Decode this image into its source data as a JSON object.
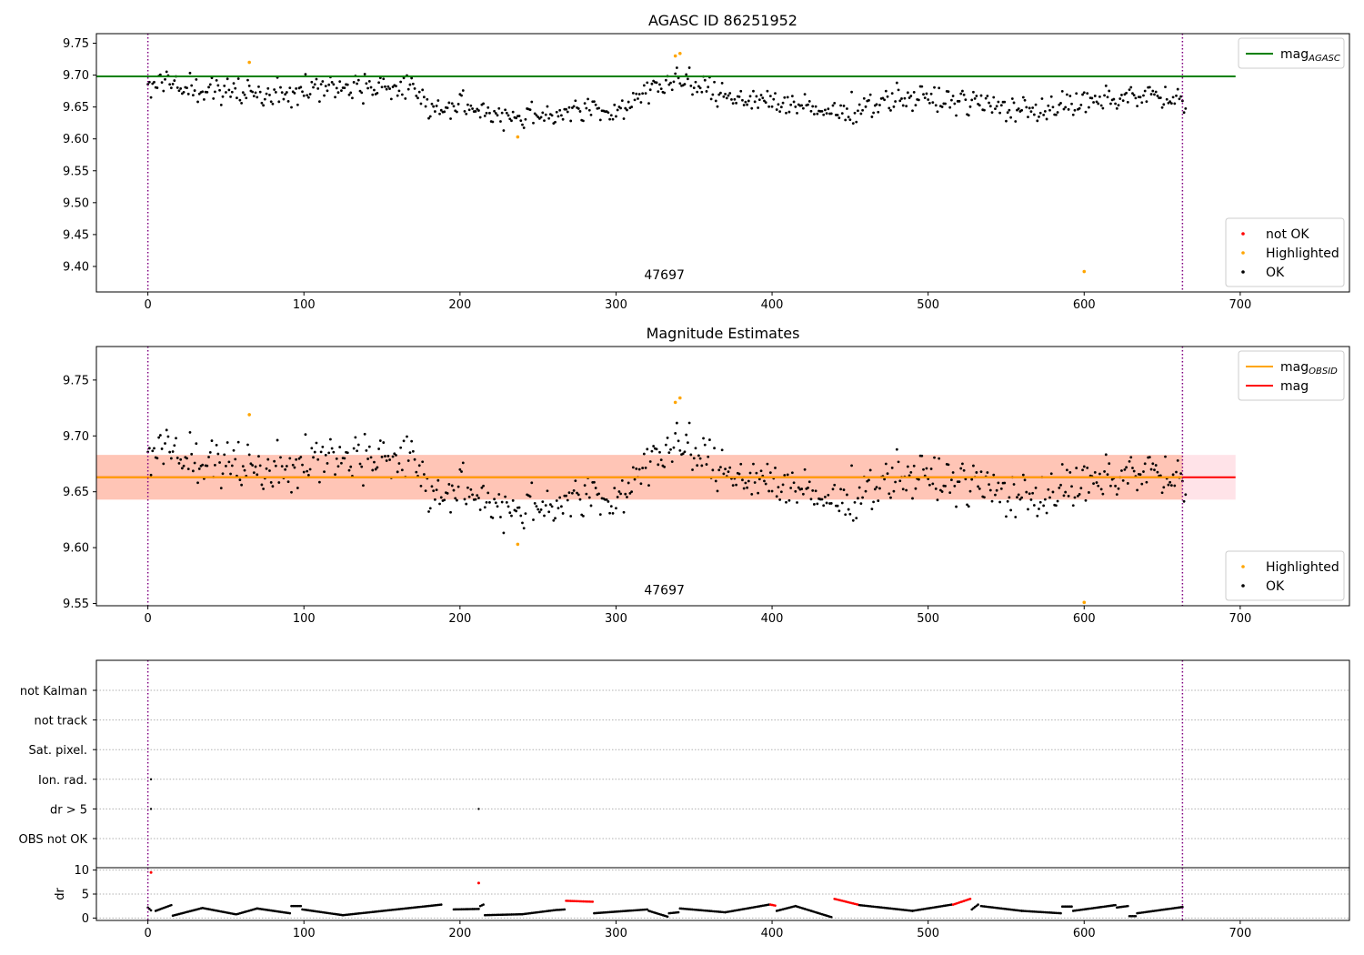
{
  "chart_data": [
    {
      "id": "agasc",
      "type": "scatter",
      "title": "AGASC ID 86251952",
      "xlim": [
        -33,
        770
      ],
      "ylim": [
        9.36,
        9.765
      ],
      "xticks": [
        0,
        100,
        200,
        300,
        400,
        500,
        600,
        700
      ],
      "yticks": [
        9.4,
        9.45,
        9.5,
        9.55,
        9.6,
        9.65,
        9.7,
        9.75
      ],
      "ytick_format": 2,
      "grid": false,
      "reference_line": {
        "name": "mag_AGASC",
        "value": 9.698,
        "x": [
          -33,
          697
        ],
        "color": "#008000"
      },
      "vlines": [
        {
          "x": 0,
          "color": "#800080"
        },
        {
          "x": 663,
          "color": "#800080"
        }
      ],
      "annotation": {
        "text": "47697",
        "x": 331,
        "y": 9.38
      },
      "legend_lines": {
        "position": "upper-right",
        "items": [
          {
            "label_main": "mag",
            "label_sub": "AGASC",
            "color": "#008000"
          }
        ]
      },
      "legend_points": {
        "position": "lower-right",
        "items": [
          {
            "label": "not OK",
            "color": "#ff0000"
          },
          {
            "label": "Highlighted",
            "color": "#ffa500"
          },
          {
            "label": "OK",
            "color": "#000000"
          }
        ]
      },
      "series": [
        {
          "name": "Highlighted",
          "color": "#ffa500",
          "x": [
            65,
            237,
            338,
            341,
            600
          ],
          "y": [
            9.72,
            9.603,
            9.73,
            9.734,
            9.392
          ]
        }
      ],
      "ok_trend": {
        "x": [
          0,
          40,
          80,
          130,
          170,
          180,
          200,
          235,
          280,
          300,
          320,
          345,
          365,
          400,
          420,
          440,
          480,
          520,
          560,
          600,
          640,
          665
        ],
        "y": [
          9.69,
          9.675,
          9.672,
          9.683,
          9.68,
          9.648,
          9.65,
          9.635,
          9.645,
          9.64,
          9.68,
          9.69,
          9.67,
          9.66,
          9.648,
          9.64,
          9.665,
          9.66,
          9.645,
          9.655,
          9.67,
          9.655
        ],
        "jitter": 0.017,
        "color": "#000000"
      }
    },
    {
      "id": "estimates",
      "type": "scatter",
      "title": "Magnitude Estimates",
      "xlim": [
        -33,
        770
      ],
      "ylim": [
        9.548,
        9.78
      ],
      "xticks": [
        0,
        100,
        200,
        300,
        400,
        500,
        600,
        700
      ],
      "yticks": [
        9.55,
        9.6,
        9.65,
        9.7,
        9.75
      ],
      "ytick_format": 2,
      "grid": false,
      "bands": [
        {
          "y": [
            9.643,
            9.683
          ],
          "x": [
            -33,
            697
          ],
          "color": "#ffc0cb",
          "opacity": 0.45
        },
        {
          "y": [
            9.643,
            9.683
          ],
          "x": [
            -33,
            663
          ],
          "color": "#ffa07a",
          "opacity": 0.45
        }
      ],
      "reference_lines": [
        {
          "name": "mag",
          "value": 9.663,
          "x": [
            -33,
            697
          ],
          "color": "#ff0000"
        },
        {
          "name": "mag_OBSID",
          "value": 9.663,
          "x": [
            -33,
            663
          ],
          "color": "#ffa500"
        }
      ],
      "vlines": [
        {
          "x": 0,
          "color": "#800080"
        },
        {
          "x": 663,
          "color": "#800080"
        }
      ],
      "annotation": {
        "text": "47697",
        "x": 331,
        "y": 9.558
      },
      "legend_lines": {
        "position": "upper-right",
        "items": [
          {
            "label_main": "mag",
            "label_sub": "OBSID",
            "color": "#ffa500"
          },
          {
            "label_main": "mag",
            "label_sub": "",
            "color": "#ff0000"
          }
        ]
      },
      "legend_points": {
        "position": "lower-right",
        "items": [
          {
            "label": "Highlighted",
            "color": "#ffa500"
          },
          {
            "label": "OK",
            "color": "#000000"
          }
        ]
      },
      "series": [
        {
          "name": "Highlighted",
          "color": "#ffa500",
          "x": [
            65,
            237,
            338,
            341,
            600
          ],
          "y": [
            9.719,
            9.603,
            9.73,
            9.734,
            9.551
          ]
        }
      ],
      "ok_trend": {
        "x": [
          0,
          40,
          80,
          130,
          170,
          180,
          200,
          235,
          280,
          300,
          320,
          345,
          365,
          400,
          420,
          440,
          480,
          520,
          560,
          600,
          640,
          665
        ],
        "y": [
          9.69,
          9.675,
          9.672,
          9.683,
          9.68,
          9.648,
          9.65,
          9.635,
          9.645,
          9.64,
          9.68,
          9.69,
          9.67,
          9.66,
          9.648,
          9.64,
          9.665,
          9.66,
          9.645,
          9.655,
          9.67,
          9.655
        ],
        "jitter": 0.017,
        "color": "#000000"
      }
    },
    {
      "id": "flags",
      "type": "scatter",
      "xlim": [
        -33,
        770
      ],
      "categories": [
        "not Kalman",
        "not track",
        "Sat. pixel.",
        "Ion. rad.",
        "dr > 5",
        "OBS not OK"
      ],
      "grid": true,
      "vlines": [
        {
          "x": 0,
          "color": "#800080"
        },
        {
          "x": 663,
          "color": "#800080"
        }
      ],
      "points": [
        {
          "category": "Ion. rad.",
          "x": 2,
          "color": "#000000"
        },
        {
          "category": "dr > 5",
          "x": 2,
          "color": "#000000"
        },
        {
          "category": "dr > 5",
          "x": 212,
          "color": "#000000"
        }
      ]
    },
    {
      "id": "dr",
      "type": "scatter",
      "ylabel": "dr",
      "xlim": [
        -33,
        770
      ],
      "ylim": [
        -0.5,
        10.5
      ],
      "xticks": [
        0,
        100,
        200,
        300,
        400,
        500,
        600,
        700
      ],
      "yticks": [
        0,
        5,
        10
      ],
      "ytick_format": 0,
      "grid": true,
      "vlines": [
        {
          "x": 0,
          "color": "#800080"
        },
        {
          "x": 663,
          "color": "#800080"
        }
      ],
      "segments": [
        {
          "x": [
            0,
            2
          ],
          "y": [
            2.2,
            1.6
          ]
        },
        {
          "x": [
            5,
            15
          ],
          "y": [
            1.5,
            2.7
          ]
        },
        {
          "x": [
            16,
            35,
            56
          ],
          "y": [
            0.5,
            2.1,
            0.8
          ]
        },
        {
          "x": [
            57,
            70,
            91
          ],
          "y": [
            0.8,
            2.0,
            1.0
          ]
        },
        {
          "x": [
            92,
            98
          ],
          "y": [
            2.5,
            2.5
          ]
        },
        {
          "x": [
            99,
            125,
            188
          ],
          "y": [
            1.8,
            0.6,
            2.8
          ]
        },
        {
          "x": [
            196,
            212
          ],
          "y": [
            1.8,
            1.9
          ]
        },
        {
          "x": [
            213,
            215
          ],
          "y": [
            2.5,
            2.8
          ]
        },
        {
          "x": [
            216,
            240,
            262
          ],
          "y": [
            0.6,
            0.8,
            1.7
          ]
        },
        {
          "x": [
            263,
            267
          ],
          "y": [
            1.7,
            1.8
          ]
        },
        {
          "x": [
            268,
            285
          ],
          "y": [
            3.6,
            3.4
          ],
          "color": "#ff0000"
        },
        {
          "x": [
            286,
            320
          ],
          "y": [
            1.0,
            1.8
          ]
        },
        {
          "x": [
            321,
            333
          ],
          "y": [
            1.5,
            0.3
          ]
        },
        {
          "x": [
            334,
            340
          ],
          "y": [
            1.0,
            1.2
          ]
        },
        {
          "x": [
            341,
            370,
            398
          ],
          "y": [
            2.0,
            1.2,
            2.8
          ]
        },
        {
          "x": [
            399,
            402
          ],
          "y": [
            2.8,
            2.6
          ],
          "color": "#ff0000"
        },
        {
          "x": [
            403,
            415,
            438
          ],
          "y": [
            1.5,
            2.5,
            0.2
          ]
        },
        {
          "x": [
            440,
            455
          ],
          "y": [
            4.0,
            2.8
          ],
          "color": "#ff0000"
        },
        {
          "x": [
            456,
            490,
            515
          ],
          "y": [
            2.7,
            1.5,
            2.8
          ]
        },
        {
          "x": [
            516,
            527
          ],
          "y": [
            2.8,
            4.0
          ],
          "color": "#ff0000"
        },
        {
          "x": [
            528,
            532
          ],
          "y": [
            1.8,
            2.8
          ]
        },
        {
          "x": [
            534,
            560,
            585
          ],
          "y": [
            2.5,
            1.5,
            1.0
          ]
        },
        {
          "x": [
            586,
            592
          ],
          "y": [
            2.4,
            2.4
          ]
        },
        {
          "x": [
            593,
            620
          ],
          "y": [
            1.5,
            2.7
          ]
        },
        {
          "x": [
            621,
            628
          ],
          "y": [
            2.2,
            2.5
          ]
        },
        {
          "x": [
            629,
            633
          ],
          "y": [
            0.4,
            0.4
          ]
        },
        {
          "x": [
            634,
            663
          ],
          "y": [
            1.0,
            2.3
          ]
        }
      ],
      "highlight_points": [
        {
          "x": 2,
          "y": 9.5,
          "color": "#ff0000"
        },
        {
          "x": 212,
          "y": 7.3,
          "color": "#ff0000"
        }
      ]
    }
  ]
}
